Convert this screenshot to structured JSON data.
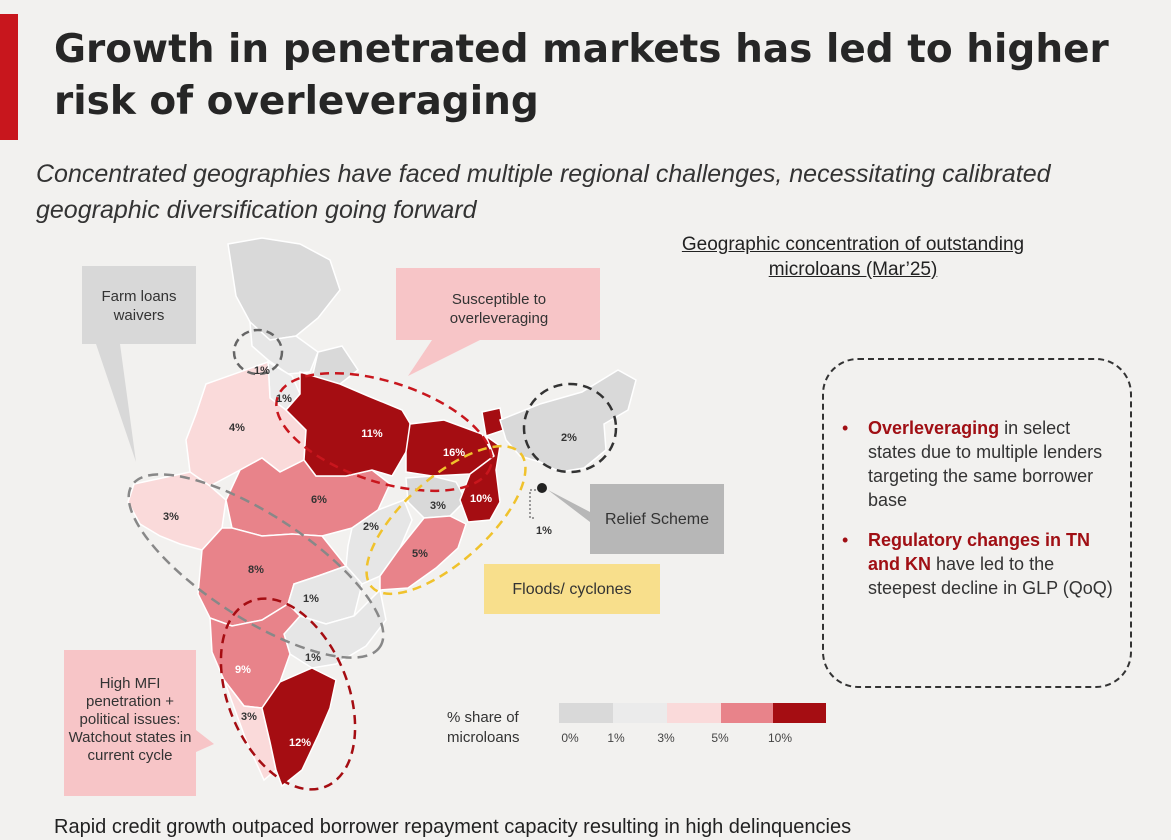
{
  "header": {
    "title": "Growth in penetrated markets has led to higher risk of overleveraging",
    "subtitle": "Concentrated geographies have faced multiple regional challenges, necessitating calibrated geographic diversification going forward"
  },
  "map": {
    "title": "Geographic concentration of outstanding microloans (Mar’25)",
    "state_shares": {
      "jammu_kashmir": "1%",
      "punjab_haryana": "1%",
      "rajasthan": "4%",
      "gujarat": "3%",
      "madhya_pradesh": "6%",
      "maharashtra": "8%",
      "uttar_pradesh": "11%",
      "bihar": "16%",
      "jharkhand": "3%",
      "west_bengal": "10%",
      "chhattisgarh": "2%",
      "odisha": "5%",
      "telangana": "1%",
      "andhra_pradesh": "1%",
      "karnataka": "9%",
      "kerala": "3%",
      "tamil_nadu": "12%",
      "north_east": "2%",
      "tripura": "1%"
    },
    "callouts": {
      "farm_loans": "Farm loans waivers",
      "overleveraging": "Susceptible to overleveraging",
      "relief": "Relief Scheme",
      "floods": "Floods/ cyclones",
      "high_mfi": "High MFI penetration + political issues: Watchout states in current cycle"
    },
    "legend": {
      "label": "% share of microloans",
      "ticks": [
        "0%",
        "1%",
        "3%",
        "5%",
        "10%"
      ],
      "colors": [
        "#d9d9d9",
        "#ebebeb",
        "#fadada",
        "#e8838a",
        "#a50d12"
      ]
    }
  },
  "info_box": {
    "items": [
      {
        "highlight": "Overleveraging",
        "text": " in select states due to multiple lenders targeting the same borrower base"
      },
      {
        "highlight": "Regulatory changes in TN and KN",
        "text": " have led to the steepest decline in GLP (QoQ)"
      }
    ]
  },
  "footer": {
    "text": "Rapid credit growth outpaced borrower repayment capacity resulting in high delinquencies"
  },
  "colors": {
    "accent_red": "#c8161d",
    "dark_red": "#a50d12",
    "mid_pink": "#e8838a",
    "light_pink": "#fadada",
    "callout_pink": "#f7c5c7",
    "callout_yellow": "#f8df8c",
    "callout_grey": "#b7b7b7",
    "flood_dash": "#f0c22c"
  }
}
